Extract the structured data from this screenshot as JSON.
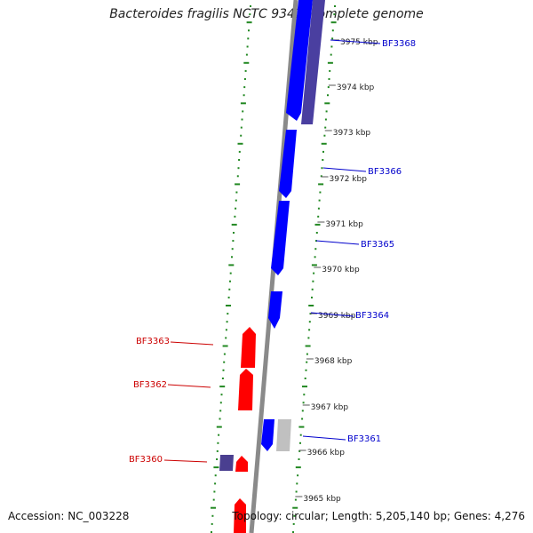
{
  "title": "Bacteroides fragilis NCTC 9343, complete genome",
  "footer": {
    "accession": "Accession: NC_003228",
    "topology": "Topology: circular; Length: 5,205,140 bp; Genes: 4,276"
  },
  "colors": {
    "forward_gene": "#0000ff",
    "reverse_gene": "#ff0000",
    "forward_label": "#0000cc",
    "reverse_label": "#cc0000",
    "backbone": "#888888",
    "gc_tick": "#228822"
  },
  "ticks": [
    {
      "label": "3975 kbp",
      "kbp": 3975
    },
    {
      "label": "3974 kbp",
      "kbp": 3974
    },
    {
      "label": "3973 kbp",
      "kbp": 3973
    },
    {
      "label": "3972 kbp",
      "kbp": 3972
    },
    {
      "label": "3971 kbp",
      "kbp": 3971
    },
    {
      "label": "3970 kbp",
      "kbp": 3970
    },
    {
      "label": "3969 kbp",
      "kbp": 3969
    },
    {
      "label": "3968 kbp",
      "kbp": 3968
    },
    {
      "label": "3967 kbp",
      "kbp": 3967
    },
    {
      "label": "3966 kbp",
      "kbp": 3966
    },
    {
      "label": "3965 kbp",
      "kbp": 3965
    }
  ],
  "gene_labels": [
    {
      "name": "BF3368",
      "strand": "forward"
    },
    {
      "name": "BF3366",
      "strand": "forward"
    },
    {
      "name": "BF3365",
      "strand": "forward"
    },
    {
      "name": "BF3364",
      "strand": "forward"
    },
    {
      "name": "BF3361",
      "strand": "forward"
    },
    {
      "name": "BF3363",
      "strand": "reverse"
    },
    {
      "name": "BF3362",
      "strand": "reverse"
    },
    {
      "name": "BF3360",
      "strand": "reverse"
    }
  ]
}
